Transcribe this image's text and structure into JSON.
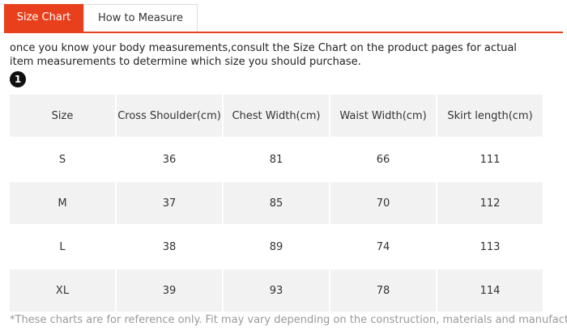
{
  "tabs": [
    "Size Chart",
    "How to Measure"
  ],
  "intro": "once you know your body measurements,consult the Size Chart on the product pages for actual item measurements to determine which size you should purchase.",
  "step": "1",
  "table": {
    "header": [
      "Size",
      "Cross Shoulder(cm)",
      "Chest Width(cm)",
      "Waist Width(cm)",
      "Skirt length(cm)"
    ],
    "rows": [
      [
        "S",
        36,
        81,
        66,
        111
      ],
      [
        "M",
        37,
        85,
        70,
        112
      ],
      [
        "L",
        38,
        89,
        74,
        113
      ],
      [
        "XL",
        39,
        93,
        78,
        114
      ]
    ]
  },
  "footnote": "*These charts are for reference only. Fit may vary depending on the construction, materials and manufacturer."
}
